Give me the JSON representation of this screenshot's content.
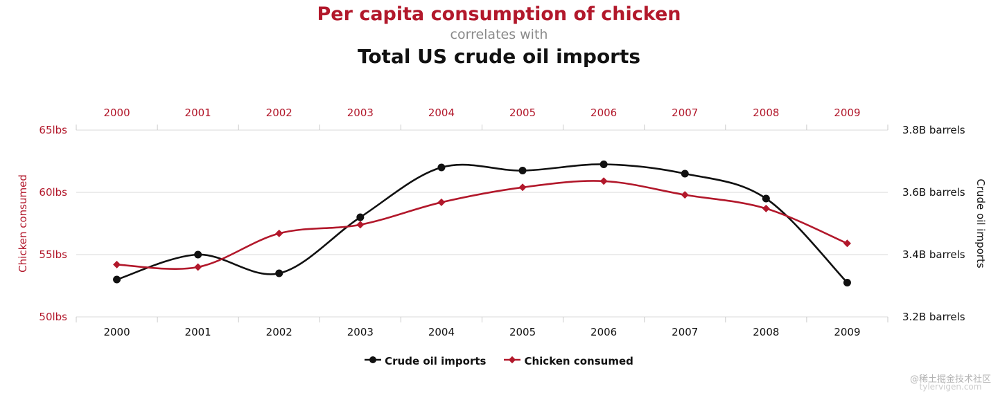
{
  "header": {
    "title_top": "Per capita consumption of chicken",
    "connector": "correlates with",
    "title_bottom": "Total US crude oil imports"
  },
  "colors": {
    "accent": "#b2182b",
    "ink": "#111111",
    "muted": "#8a8a8a",
    "grid": "#d8d8d8",
    "watermark": "#b3b3b3"
  },
  "legend": {
    "items": [
      {
        "marker": "circle",
        "label": "Crude oil imports",
        "color": "#111111"
      },
      {
        "marker": "diamond",
        "label": "Chicken consumed",
        "color": "#b2182b"
      }
    ]
  },
  "watermark": {
    "line1": "@稀土掘金技术社区",
    "line2": "tylervigen.com"
  },
  "chart_data": {
    "type": "line",
    "x": [
      2000,
      2001,
      2002,
      2003,
      2004,
      2005,
      2006,
      2007,
      2008,
      2009
    ],
    "series": [
      {
        "name": "Crude oil imports",
        "axis": "right",
        "color": "#111111",
        "marker": "circle",
        "values": [
          3.32,
          3.4,
          3.34,
          3.52,
          3.68,
          3.67,
          3.69,
          3.66,
          3.58,
          3.31
        ]
      },
      {
        "name": "Chicken consumed",
        "axis": "left",
        "color": "#b2182b",
        "marker": "diamond",
        "values": [
          54.2,
          54.0,
          56.7,
          57.4,
          59.2,
          60.4,
          60.9,
          59.8,
          58.7,
          55.9
        ]
      }
    ],
    "left_axis": {
      "title": "Chicken consumed",
      "range": [
        50,
        65
      ],
      "ticks": [
        65,
        60,
        55,
        50
      ],
      "tick_labels": [
        "65lbs",
        "60lbs",
        "55lbs",
        "50lbs"
      ]
    },
    "right_axis": {
      "title": "Crude oil imports",
      "range": [
        3.2,
        3.8
      ],
      "ticks": [
        3.8,
        3.6,
        3.4,
        3.2
      ],
      "tick_labels": [
        "3.8B barrels",
        "3.6B barrels",
        "3.4B barrels",
        "3.2B barrels"
      ]
    },
    "grid": true,
    "legend_position": "bottom"
  }
}
